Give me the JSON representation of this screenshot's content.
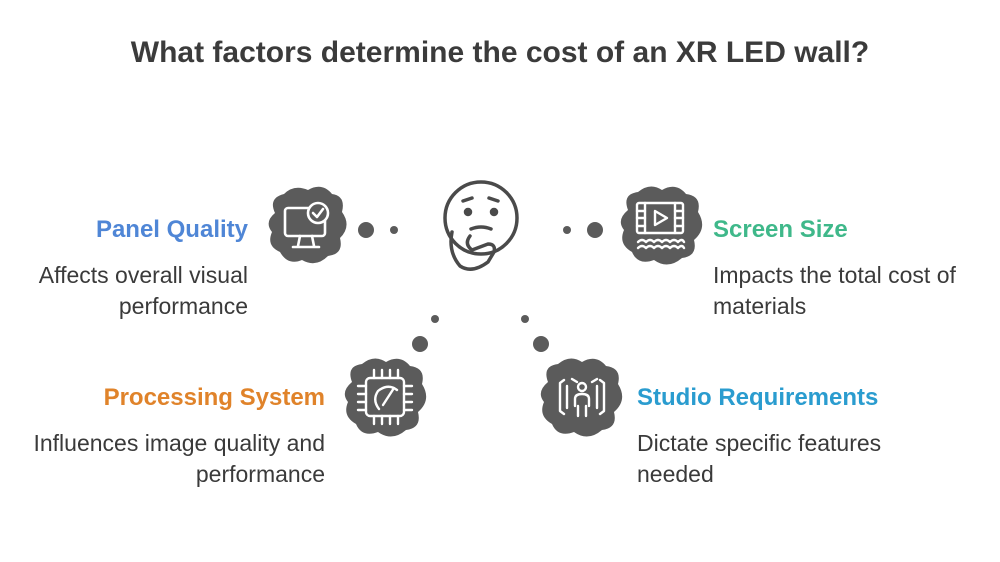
{
  "title": "What factors determine the cost of an XR LED wall?",
  "colors": {
    "panel_quality": "#4f86d6",
    "screen_size": "#3fb88a",
    "processing_system": "#e0832a",
    "studio_requirements": "#2a9ccf",
    "icon_bg": "#5b5b5b",
    "connector": "#5b5b5b"
  },
  "center_icon": "thinking-face-icon",
  "factors": [
    {
      "name": "Panel Quality",
      "description": "Affects overall visual performance",
      "icon": "monitor-check-icon"
    },
    {
      "name": "Screen Size",
      "description": "Impacts the total cost of materials",
      "icon": "film-screen-icon"
    },
    {
      "name": "Processing System",
      "description": "Influences image quality and performance",
      "icon": "processor-chip-icon"
    },
    {
      "name": "Studio Requirements",
      "description": "Dictate specific features needed",
      "icon": "studio-stage-icon"
    }
  ]
}
